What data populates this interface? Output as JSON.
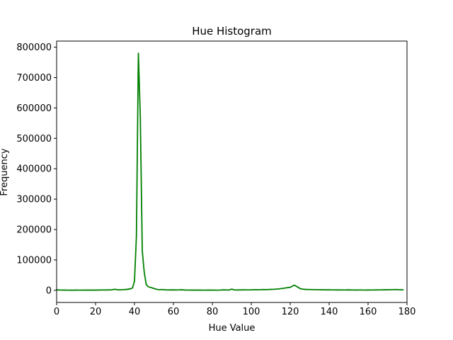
{
  "chart_data": {
    "type": "line",
    "title": "Hue Histogram",
    "xlabel": "Hue Value",
    "ylabel": "Frequency",
    "xlim": [
      0,
      180
    ],
    "ylim": [
      -40000,
      820000
    ],
    "xticks": [
      0,
      20,
      40,
      60,
      80,
      100,
      120,
      140,
      160,
      180
    ],
    "xtick_labels": [
      "0",
      "20",
      "40",
      "60",
      "80",
      "100",
      "120",
      "140",
      "160",
      "180"
    ],
    "yticks": [
      0,
      100000,
      200000,
      300000,
      400000,
      500000,
      600000,
      700000,
      800000
    ],
    "ytick_labels": [
      "0",
      "100000",
      "200000",
      "300000",
      "400000",
      "500000",
      "600000",
      "700000",
      "800000"
    ],
    "grid": false,
    "series": [
      {
        "color": "#008000",
        "x": [
          0,
          2,
          4,
          6,
          8,
          10,
          12,
          14,
          16,
          18,
          20,
          22,
          24,
          26,
          28,
          29,
          30,
          31,
          32,
          34,
          36,
          38,
          39,
          40,
          41,
          42,
          43,
          44,
          45,
          46,
          47,
          48,
          49,
          50,
          51,
          52,
          53,
          54,
          56,
          58,
          60,
          62,
          64,
          66,
          68,
          70,
          72,
          74,
          76,
          78,
          80,
          82,
          84,
          86,
          88,
          89,
          90,
          91,
          92,
          94,
          96,
          98,
          100,
          102,
          104,
          106,
          108,
          110,
          112,
          114,
          116,
          118,
          120,
          121,
          122,
          123,
          124,
          125,
          126,
          128,
          130,
          132,
          134,
          136,
          138,
          140,
          142,
          144,
          146,
          148,
          150,
          152,
          154,
          156,
          158,
          160,
          162,
          164,
          166,
          168,
          170,
          172,
          174,
          176,
          178
        ],
        "y": [
          1500,
          800,
          600,
          500,
          400,
          600,
          500,
          700,
          800,
          600,
          700,
          900,
          1000,
          1200,
          1400,
          2500,
          3500,
          2000,
          1500,
          2000,
          3000,
          5000,
          8000,
          30000,
          180000,
          780000,
          570000,
          130000,
          60000,
          20000,
          12000,
          10000,
          8000,
          6000,
          4000,
          2500,
          2000,
          2500,
          1500,
          1200,
          1500,
          1000,
          1800,
          900,
          800,
          700,
          600,
          800,
          500,
          600,
          700,
          500,
          800,
          1500,
          800,
          1500,
          4000,
          1500,
          1000,
          1200,
          1500,
          1400,
          1500,
          2000,
          1600,
          2500,
          2200,
          3000,
          3500,
          4500,
          6000,
          8000,
          10000,
          13000,
          17000,
          14000,
          10000,
          6000,
          4000,
          3000,
          2500,
          2200,
          2000,
          1800,
          1500,
          1500,
          1400,
          1200,
          1200,
          1000,
          1500,
          1000,
          900,
          1000,
          800,
          900,
          1000,
          1200,
          1300,
          1500,
          1800,
          2000,
          2500,
          2000,
          1500
        ]
      }
    ]
  }
}
